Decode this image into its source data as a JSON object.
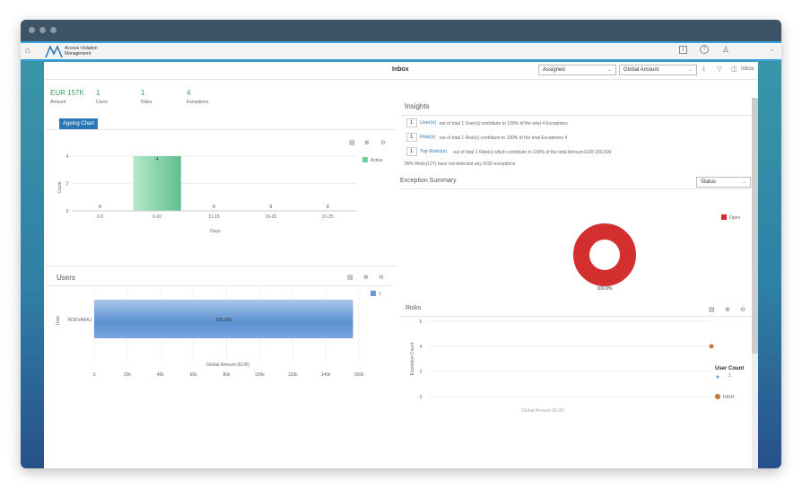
{
  "app": {
    "title": "Access Violation Management"
  },
  "header": {
    "icons": [
      "home-icon",
      "info-icon",
      "help-icon",
      "user-settings-icon",
      "chevron-down-icon"
    ]
  },
  "toolbar": {
    "title": "Inbox",
    "filter1": "Assigned",
    "filter2": "Global Amount",
    "inbox_label": "Inbox"
  },
  "kpis": [
    {
      "value": "EUR 157K",
      "label": "Amount"
    },
    {
      "value": "1",
      "label": "Users"
    },
    {
      "value": "1",
      "label": "Risks"
    },
    {
      "value": "4",
      "label": "Exceptions"
    }
  ],
  "colors": {
    "kpi": "#3a9a5c",
    "active": "#6fcf97",
    "user_bar": "#6a9bd8",
    "open": "#d32f2f",
    "high": "#c8743a",
    "link": "#2a7ab8"
  },
  "ageing": {
    "tab": "Ageing Chart",
    "legend": "Active",
    "xlabel": "Days",
    "ylabel": "Count"
  },
  "users": {
    "title": "Users",
    "legend": "1",
    "ylabel": "User",
    "xlabel": "Global Amount (EUR)"
  },
  "insights": {
    "title": "Insights",
    "rows": [
      {
        "input": "1",
        "link": "User(s)",
        "text": "out of total 1 User(s) contribute to 100% of the total 4 Exceptions"
      },
      {
        "input": "1",
        "link": "Risk(s)",
        "text": "out of total 1 Risk(s) contribute to 100% of the total Exceptions 4"
      },
      {
        "input": "1",
        "link": "Top Risks(s)",
        "text": "out of total 1 Risk(s) which contribute to 100% of the total Amount EUR 156,500"
      }
    ],
    "note": "99% Risks(127) have not detected any SOD exceptions"
  },
  "exception_summary": {
    "title": "Exception Summary",
    "select": "Status",
    "legend": "Open",
    "label": "100.0%"
  },
  "risks": {
    "title": "Risks",
    "ylabel": "Exception Count",
    "xlabel": "Global Amount (EUR)",
    "legend_title": "User Count",
    "legend_size": "1",
    "legend_series": "HIGH"
  },
  "chart_data": [
    {
      "type": "bar",
      "title": "",
      "categories": [
        "0-5",
        "6-10",
        "11-15",
        "16-20",
        "21-25"
      ],
      "series": [
        {
          "name": "Active",
          "values": [
            0,
            4,
            0,
            0,
            0
          ]
        }
      ],
      "xlabel": "Days",
      "ylabel": "Count",
      "ylim": [
        0,
        4
      ],
      "yticks": [
        "0",
        "2",
        "4"
      ],
      "grid": true,
      "legend": "right"
    },
    {
      "type": "bar",
      "orientation": "horizontal",
      "categories": [
        "RDEVARAJ"
      ],
      "series": [
        {
          "name": "1",
          "values": [
            156500
          ]
        }
      ],
      "data_labels": [
        "156.50k"
      ],
      "xlabel": "Global Amount (EUR)",
      "ylabel": "User",
      "xlim": [
        0,
        160000
      ],
      "xticks": [
        "0",
        "20k",
        "40k",
        "60k",
        "80k",
        "100k",
        "120k",
        "140k",
        "160k"
      ],
      "legend": "right"
    },
    {
      "type": "pie",
      "donut": true,
      "slices": [
        {
          "name": "Open",
          "value": 100
        }
      ],
      "labels": [
        "100.0%"
      ],
      "legend": "right"
    },
    {
      "type": "scatter",
      "series": [
        {
          "name": "HIGH",
          "points": [
            {
              "x": 156500,
              "y": 4,
              "size": 1
            }
          ]
        }
      ],
      "xlabel": "Global Amount (EUR)",
      "ylabel": "Exception Count",
      "ylim": [
        0,
        6
      ],
      "yticks": [
        "0",
        "2",
        "4",
        "6"
      ],
      "legend": "right"
    }
  ]
}
